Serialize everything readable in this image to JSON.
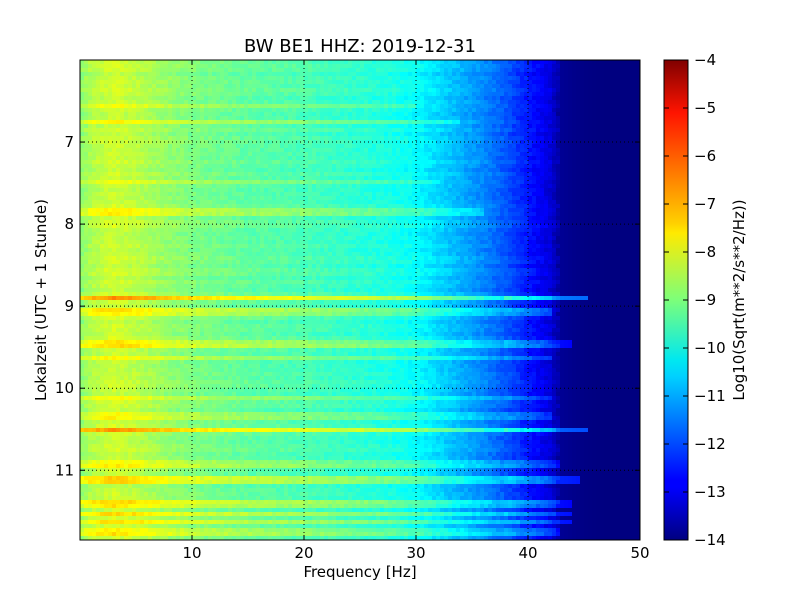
{
  "chart_data": {
    "type": "heatmap",
    "title": "BW BE1 HHZ: 2019-12-31",
    "xlabel": "Frequency [Hz]",
    "ylabel": "Lokalzeit (UTC + 1 Stunde)",
    "xlim": [
      0,
      50
    ],
    "ylim": [
      6.0,
      11.85
    ],
    "y_inverted": true,
    "xticks": [
      10,
      20,
      30,
      40,
      50
    ],
    "xtick_labels": [
      "10",
      "20",
      "30",
      "40",
      "50"
    ],
    "yticks": [
      7,
      8,
      9,
      10,
      11
    ],
    "ytick_labels": [
      "7",
      "8",
      "9",
      "10",
      "11"
    ],
    "grid": true,
    "colormap": "jet",
    "colorbar": {
      "label": "Log10(Sqrt(m**2/s**2/Hz))",
      "range": [
        -14,
        -4
      ],
      "ticks": [
        -4,
        -5,
        -6,
        -7,
        -8,
        -9,
        -10,
        -11,
        -12,
        -13,
        -14
      ],
      "tick_labels": [
        "−4",
        "−5",
        "−6",
        "−7",
        "−8",
        "−9",
        "−10",
        "−11",
        "−12",
        "−13",
        "−14"
      ]
    },
    "spectrum_profile": {
      "frequency_hz": [
        0,
        1,
        3,
        5,
        8,
        10,
        15,
        20,
        25,
        28,
        30,
        32,
        34,
        36,
        38,
        40,
        42,
        43,
        45,
        47,
        50
      ],
      "log10_amplitude": [
        -8.9,
        -8.5,
        -8.2,
        -8.4,
        -8.8,
        -9.0,
        -9.3,
        -9.5,
        -9.8,
        -10.0,
        -10.2,
        -10.6,
        -11.0,
        -11.4,
        -11.9,
        -12.5,
        -13.1,
        -13.8,
        -13.95,
        -14.0,
        -14.0
      ]
    },
    "event_rows": [
      {
        "time_h": 6.57,
        "boost": 0.4,
        "fmax_hz": 30
      },
      {
        "time_h": 6.76,
        "boost": 0.5,
        "fmax_hz": 34
      },
      {
        "time_h": 7.48,
        "boost": 0.4,
        "fmax_hz": 32
      },
      {
        "time_h": 7.85,
        "boost": 0.6,
        "fmax_hz": 36
      },
      {
        "time_h": 8.89,
        "boost": 1.6,
        "fmax_hz": 45.5
      },
      {
        "time_h": 9.06,
        "boost": 0.7,
        "fmax_hz": 42
      },
      {
        "time_h": 9.46,
        "boost": 0.8,
        "fmax_hz": 44
      },
      {
        "time_h": 9.62,
        "boost": 0.5,
        "fmax_hz": 42
      },
      {
        "time_h": 10.11,
        "boost": 0.5,
        "fmax_hz": 42
      },
      {
        "time_h": 10.35,
        "boost": 0.5,
        "fmax_hz": 42
      },
      {
        "time_h": 10.5,
        "boost": 1.4,
        "fmax_hz": 45.5
      },
      {
        "time_h": 10.93,
        "boost": 0.6,
        "fmax_hz": 43
      },
      {
        "time_h": 11.12,
        "boost": 1.0,
        "fmax_hz": 44.5
      },
      {
        "time_h": 11.42,
        "boost": 0.8,
        "fmax_hz": 44
      },
      {
        "time_h": 11.54,
        "boost": 0.9,
        "fmax_hz": 44
      },
      {
        "time_h": 11.63,
        "boost": 0.9,
        "fmax_hz": 44
      },
      {
        "time_h": 11.75,
        "boost": 0.7,
        "fmax_hz": 43
      }
    ]
  }
}
